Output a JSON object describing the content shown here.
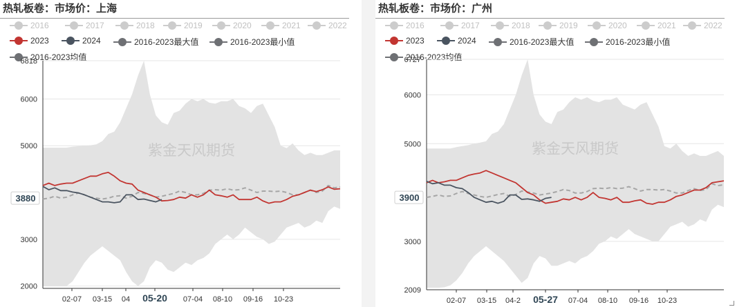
{
  "chart_data": [
    {
      "type": "line",
      "title": "热轧板卷：市场价：上海",
      "watermark": "紫金天风期货",
      "ylim": [
        1950,
        6818
      ],
      "y_ticks": [
        2000,
        3000,
        4000,
        5000,
        6000,
        6818
      ],
      "y_tick_labels": [
        "2000",
        "3000",
        "",
        "5000",
        "6000",
        "6818"
      ],
      "x_ticks": [
        "02-07",
        "03-15",
        "04",
        "05-20",
        "07-04",
        "08-10",
        "09-16",
        "10-23"
      ],
      "highlight_x": "05-20",
      "highlight_y": "3880",
      "legend": [
        "2016",
        "2017",
        "2018",
        "2019",
        "2020",
        "2021",
        "2022",
        "2023",
        "2024",
        "2016-2023最大值",
        "2016-2023最小值",
        "2016-2023均值"
      ],
      "legend_inactive": [
        "2016",
        "2017",
        "2018",
        "2019",
        "2020",
        "2021",
        "2022"
      ],
      "colors": {
        "2023": "#c23531",
        "2024": "#4a5460",
        "max": "#6e7074",
        "min": "#6e7074",
        "avg": "#a6a6a6",
        "band": "#e3e3e3",
        "inactive": "#cccccc"
      },
      "band": {
        "x": [
          0,
          2,
          4,
          6,
          8,
          10,
          12,
          14,
          16,
          18,
          20,
          22,
          24,
          26,
          28,
          30,
          32,
          34,
          36,
          38,
          40,
          42,
          44,
          46,
          48,
          50,
          52,
          54,
          56,
          58,
          60,
          62,
          64,
          66,
          68,
          70,
          72,
          74,
          76,
          78,
          80,
          82,
          84,
          86,
          88,
          90,
          92,
          94,
          96,
          98,
          100
        ],
        "upper": [
          4960,
          4960,
          4960,
          4960,
          4960,
          4980,
          4990,
          5000,
          5010,
          5030,
          5100,
          5250,
          5300,
          5500,
          5800,
          6100,
          6500,
          6818,
          6100,
          5650,
          5500,
          5450,
          5700,
          5750,
          5900,
          6000,
          5950,
          6000,
          5920,
          5900,
          5950,
          5950,
          6000,
          5850,
          5800,
          5700,
          5850,
          5900,
          5650,
          5400,
          5000,
          4950,
          5050,
          4900,
          4800,
          4850,
          4800,
          4800,
          4850,
          4900,
          4900
        ],
        "lower": [
          2000,
          2000,
          2000,
          2000,
          2000,
          2100,
          2300,
          2500,
          2650,
          2750,
          2850,
          2750,
          2650,
          2550,
          2300,
          2100,
          2000,
          2100,
          2400,
          2550,
          2500,
          2350,
          2300,
          2400,
          2500,
          2450,
          2550,
          2600,
          2700,
          2900,
          3000,
          3100,
          3000,
          3100,
          3250,
          3150,
          3050,
          3000,
          2900,
          2950,
          3100,
          3250,
          3300,
          3350,
          3250,
          3300,
          3400,
          3350,
          3600,
          3700,
          3650
        ]
      },
      "series": [
        {
          "name": "2023",
          "x": [
            0,
            2,
            4,
            6,
            8,
            10,
            12,
            14,
            16,
            18,
            20,
            22,
            24,
            26,
            28,
            30,
            32,
            34,
            36,
            38,
            40,
            42,
            44,
            46,
            48,
            50,
            52,
            54,
            56,
            58,
            60,
            62,
            64,
            66,
            68,
            70,
            72,
            74,
            76,
            78,
            80,
            82,
            84,
            86,
            88,
            90,
            92,
            94,
            96,
            98,
            100
          ],
          "y": [
            4150,
            4200,
            4150,
            4180,
            4200,
            4200,
            4250,
            4300,
            4350,
            4350,
            4400,
            4430,
            4350,
            4250,
            4200,
            4180,
            4050,
            4000,
            3950,
            3900,
            3820,
            3830,
            3850,
            3900,
            3880,
            3950,
            3900,
            3950,
            4050,
            3950,
            3930,
            3900,
            3950,
            3850,
            3850,
            3850,
            3900,
            3820,
            3770,
            3800,
            3800,
            3850,
            3920,
            3950,
            4000,
            4050,
            4020,
            4060,
            4120,
            4070,
            4080
          ]
        },
        {
          "name": "2024",
          "x": [
            0,
            2,
            4,
            6,
            8,
            10,
            12,
            14,
            16,
            18,
            20,
            22,
            24,
            26,
            28,
            30,
            32,
            34,
            36,
            38,
            40
          ],
          "y": [
            4130,
            4060,
            4100,
            4040,
            4040,
            4010,
            3990,
            3950,
            3900,
            3850,
            3800,
            3800,
            3780,
            3800,
            3950,
            3950,
            3850,
            3860,
            3830,
            3800,
            3850
          ]
        },
        {
          "name": "2016-2023均值",
          "x": [
            0,
            2,
            4,
            6,
            8,
            10,
            12,
            14,
            16,
            18,
            20,
            22,
            24,
            26,
            28,
            30,
            32,
            34,
            36,
            38,
            40,
            42,
            44,
            46,
            48,
            50,
            52,
            54,
            56,
            58,
            60,
            62,
            64,
            66,
            68,
            70,
            72,
            74,
            76,
            78,
            80,
            82,
            84,
            86,
            88,
            90,
            92,
            94,
            96,
            98,
            100
          ],
          "y": [
            3860,
            3880,
            3920,
            3880,
            3900,
            3950,
            3990,
            3950,
            3900,
            3880,
            3860,
            3880,
            3920,
            3930,
            3880,
            3920,
            4000,
            3980,
            3950,
            3900,
            3920,
            3950,
            3980,
            4030,
            4000,
            3950,
            3950,
            3980,
            4050,
            4060,
            4050,
            4080,
            4050,
            4060,
            4100,
            4050,
            4000,
            4030,
            4030,
            4020,
            4030,
            4000,
            3950,
            3950,
            4000,
            4050,
            4000,
            4030,
            4150,
            4100,
            4120
          ]
        }
      ]
    },
    {
      "type": "line",
      "title": "热轧板卷：市场价：广州",
      "watermark": "紫金天风期货",
      "ylim": [
        2009,
        6727
      ],
      "y_ticks": [
        2009,
        3000,
        4000,
        5000,
        6000,
        6727
      ],
      "y_tick_labels": [
        "2009",
        "3000",
        "",
        "5000",
        "6000",
        "6727"
      ],
      "x_ticks": [
        "02-07",
        "03-15",
        "04-2",
        "05-27",
        "07-04",
        "08-10",
        "09-16",
        "10-23"
      ],
      "highlight_x": "05-27",
      "highlight_y": "3900",
      "legend": [
        "2016",
        "2017",
        "2018",
        "2019",
        "2020",
        "2021",
        "2022",
        "2023",
        "2024",
        "2016-2023最大值",
        "2016-2023最小值",
        "2016-2023均值"
      ],
      "legend_inactive": [
        "2016",
        "2017",
        "2018",
        "2019",
        "2020",
        "2021",
        "2022"
      ],
      "colors": {
        "2023": "#c23531",
        "2024": "#4a5460",
        "max": "#6e7074",
        "min": "#6e7074",
        "avg": "#a6a6a6",
        "band": "#e3e3e3",
        "inactive": "#cccccc"
      },
      "band": {
        "x": [
          0,
          2,
          4,
          6,
          8,
          10,
          12,
          14,
          16,
          18,
          20,
          22,
          24,
          26,
          28,
          30,
          32,
          34,
          36,
          38,
          40,
          42,
          44,
          46,
          48,
          50,
          52,
          54,
          56,
          58,
          60,
          62,
          64,
          66,
          68,
          70,
          72,
          74,
          76,
          78,
          80,
          82,
          84,
          86,
          88,
          90,
          92,
          94,
          96,
          98,
          100
        ],
        "upper": [
          4900,
          4900,
          4900,
          4900,
          4900,
          4930,
          4950,
          4970,
          5000,
          5020,
          5050,
          5200,
          5250,
          5400,
          5700,
          6000,
          6400,
          6727,
          6000,
          5600,
          5450,
          5400,
          5650,
          5700,
          5850,
          5950,
          5900,
          5950,
          5880,
          5850,
          5900,
          5900,
          5950,
          5800,
          5750,
          5700,
          5800,
          5850,
          5600,
          5350,
          4950,
          4900,
          5000,
          4850,
          4750,
          4800,
          4750,
          4750,
          4800,
          4850,
          4750
        ],
        "lower": [
          2050,
          2050,
          2050,
          2060,
          2100,
          2200,
          2350,
          2550,
          2700,
          2800,
          2900,
          2800,
          2700,
          2600,
          2450,
          2300,
          2150,
          2250,
          2550,
          2700,
          2650,
          2500,
          2500,
          2550,
          2600,
          2550,
          2650,
          2700,
          2800,
          2950,
          3000,
          3100,
          3050,
          3150,
          3250,
          3150,
          3100,
          3050,
          3000,
          3000,
          3150,
          3300,
          3350,
          3400,
          3300,
          3350,
          3450,
          3400,
          3650,
          3750,
          3700
        ]
      },
      "series": [
        {
          "name": "2023",
          "x": [
            0,
            2,
            4,
            6,
            8,
            10,
            12,
            14,
            16,
            18,
            20,
            22,
            24,
            26,
            28,
            30,
            32,
            34,
            36,
            38,
            40,
            42,
            44,
            46,
            48,
            50,
            52,
            54,
            56,
            58,
            60,
            62,
            64,
            66,
            68,
            70,
            72,
            74,
            76,
            78,
            80,
            82,
            84,
            86,
            88,
            90,
            92,
            94,
            96,
            98,
            100
          ],
          "y": [
            4200,
            4250,
            4200,
            4220,
            4250,
            4250,
            4300,
            4350,
            4380,
            4400,
            4450,
            4400,
            4350,
            4300,
            4250,
            4200,
            4100,
            4000,
            3950,
            3850,
            3780,
            3800,
            3820,
            3870,
            3850,
            3900,
            3850,
            3900,
            4000,
            3900,
            3880,
            3850,
            3900,
            3800,
            3800,
            3830,
            3850,
            3780,
            3760,
            3800,
            3800,
            3850,
            3920,
            3950,
            4000,
            4050,
            4050,
            4100,
            4200,
            4220,
            4240
          ]
        },
        {
          "name": "2024",
          "x": [
            0,
            2,
            4,
            6,
            8,
            10,
            12,
            14,
            16,
            18,
            20,
            22,
            24,
            26,
            28,
            30,
            32,
            34,
            36,
            38,
            40,
            42
          ],
          "y": [
            4230,
            4180,
            4200,
            4150,
            4150,
            4100,
            4080,
            4000,
            3900,
            3850,
            3800,
            3820,
            3780,
            3820,
            3950,
            3950,
            3860,
            3870,
            3850,
            3820,
            3880,
            3900
          ]
        },
        {
          "name": "2016-2023均值",
          "x": [
            0,
            2,
            4,
            6,
            8,
            10,
            12,
            14,
            16,
            18,
            20,
            22,
            24,
            26,
            28,
            30,
            32,
            34,
            36,
            38,
            40,
            42,
            44,
            46,
            48,
            50,
            52,
            54,
            56,
            58,
            60,
            62,
            64,
            66,
            68,
            70,
            72,
            74,
            76,
            78,
            80,
            82,
            84,
            86,
            88,
            90,
            92,
            94,
            96,
            98,
            100
          ],
          "y": [
            3900,
            3920,
            3950,
            3920,
            3930,
            3980,
            4020,
            3980,
            3950,
            3920,
            3900,
            3930,
            3960,
            3980,
            3920,
            3960,
            4030,
            4010,
            3990,
            3950,
            3970,
            3990,
            4020,
            4060,
            4040,
            3990,
            3990,
            4020,
            4080,
            4090,
            4080,
            4100,
            4080,
            4090,
            4120,
            4080,
            4030,
            4060,
            4060,
            4050,
            4060,
            4030,
            3990,
            3990,
            4040,
            4080,
            4040,
            4060,
            4180,
            4140,
            4160
          ]
        }
      ]
    }
  ]
}
